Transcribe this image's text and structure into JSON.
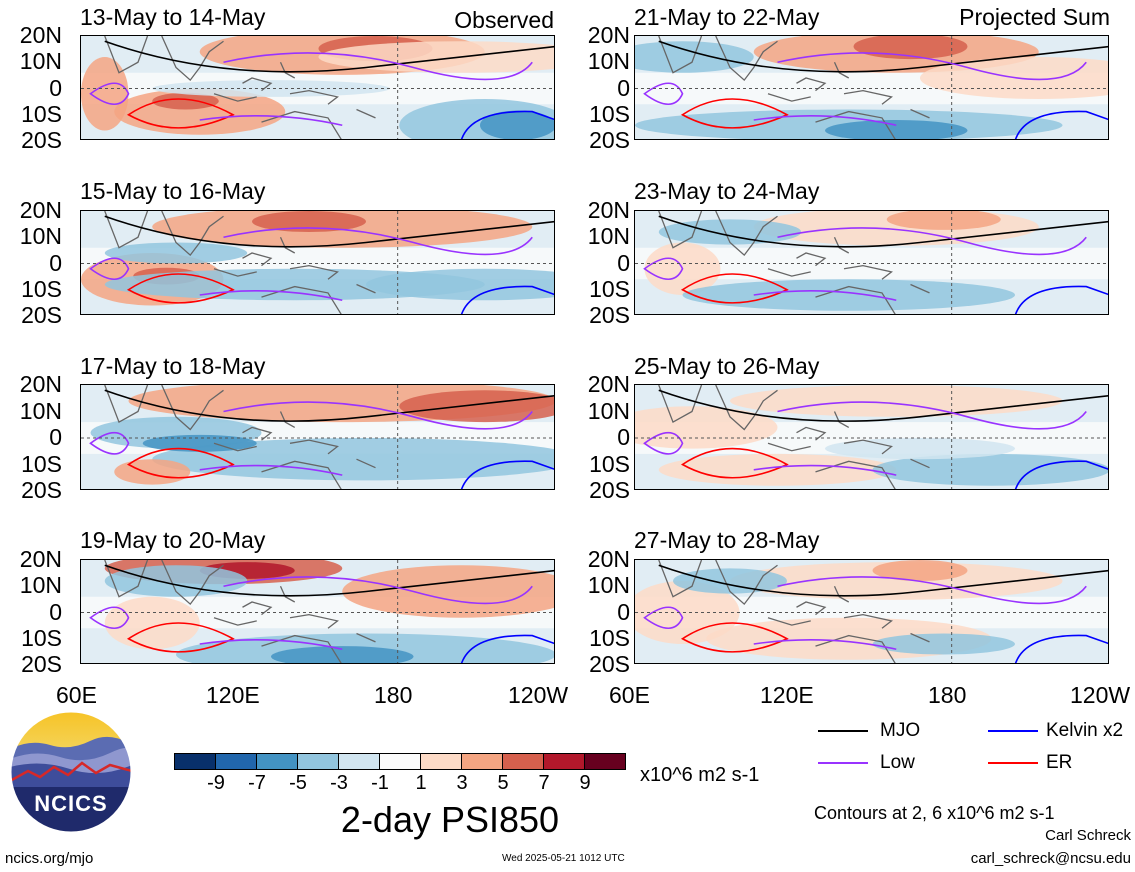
{
  "panels": [
    {
      "title": "13-May to 14-May",
      "tag": "Observed"
    },
    {
      "title": "15-May to 16-May",
      "tag": ""
    },
    {
      "title": "17-May to 18-May",
      "tag": ""
    },
    {
      "title": "19-May to 20-May",
      "tag": ""
    },
    {
      "title": "21-May to 22-May",
      "tag": "Projected Sum"
    },
    {
      "title": "23-May to 24-May",
      "tag": ""
    },
    {
      "title": "25-May to 26-May",
      "tag": ""
    },
    {
      "title": "27-May to 28-May",
      "tag": ""
    }
  ],
  "lat_ticks": [
    "20N",
    "10N",
    "0",
    "10S",
    "20S"
  ],
  "lon_ticks_left": [
    "60E",
    "120E",
    "180",
    "120W"
  ],
  "lon_ticks_right": [
    "60E",
    "120E",
    "180",
    "120W"
  ],
  "colorbar": {
    "labels": [
      "-9",
      "-7",
      "-5",
      "-3",
      "-1",
      "1",
      "3",
      "5",
      "7",
      "9"
    ],
    "colors": [
      "#08306b",
      "#2166ac",
      "#4393c3",
      "#92c5de",
      "#d1e5f0",
      "#fbfbfb",
      "#fddbc7",
      "#f4a582",
      "#d6604d",
      "#b2182b",
      "#67001f"
    ],
    "units": "x10^6 m2 s-1",
    "title": "2-day PSI850"
  },
  "legend": [
    {
      "label": "MJO",
      "color": "#000000"
    },
    {
      "label": "Kelvin x2",
      "color": "#0000ff"
    },
    {
      "label": "Low",
      "color": "#9933ff"
    },
    {
      "label": "ER",
      "color": "#ff0000"
    }
  ],
  "contour_note": "Contours at 2, 6 x10^6 m2 s-1",
  "author": "Carl Schreck",
  "email": "carl_schreck@ncsu.edu",
  "website": "ncics.org/mjo",
  "timestamp": "Wed 2025-05-21 1012 UTC",
  "logo_text": "NCICS"
}
